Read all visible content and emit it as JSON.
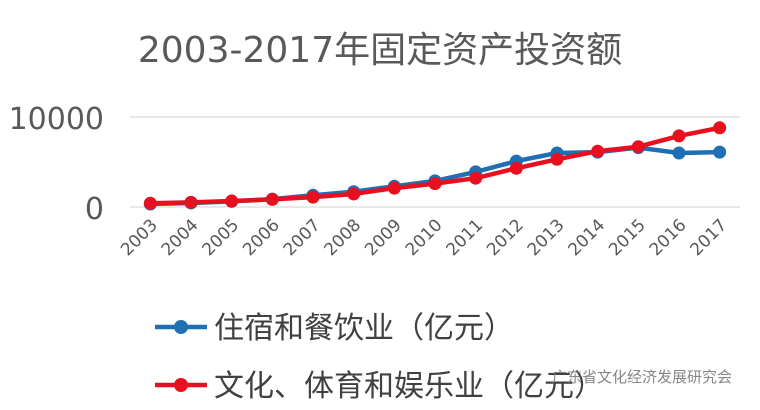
{
  "chart_data": {
    "type": "line",
    "title": "2003-2017年固定资产投资额",
    "x": [
      "2003",
      "2004",
      "2005",
      "2006",
      "2007",
      "2008",
      "2009",
      "2010",
      "2011",
      "2012",
      "2013",
      "2014",
      "2015",
      "2016",
      "2017"
    ],
    "y_ticks": [
      "0",
      "10000"
    ],
    "ylim": [
      0,
      10000
    ],
    "grid": "horizontal",
    "legend_position": "bottom",
    "series": [
      {
        "name": "住宿和餐饮业（亿元）",
        "color": "#1f6fb5",
        "values": [
          330,
          450,
          620,
          870,
          1300,
          1700,
          2300,
          2900,
          3900,
          5100,
          6000,
          6100,
          6600,
          6000,
          6100
        ]
      },
      {
        "name": "文化、体育和娱乐业（亿元）",
        "color": "#e8101f",
        "values": [
          420,
          520,
          660,
          850,
          1100,
          1450,
          2100,
          2600,
          3200,
          4300,
          5300,
          6200,
          6700,
          7900,
          8800
        ]
      }
    ]
  },
  "watermark": "广东省文化经济发展研究会"
}
